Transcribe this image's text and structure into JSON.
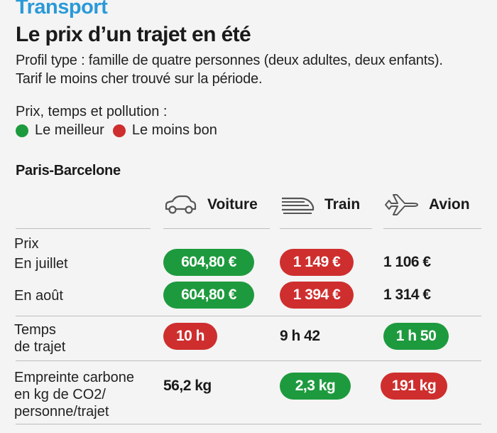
{
  "header": {
    "kicker": "Transport",
    "title": "Le prix d’un trajet en été",
    "subtitle_line1": "Profil type : famille de quatre personnes (deux adultes, deux enfants).",
    "subtitle_line2": "Tarif le moins cher trouvé sur la période."
  },
  "legend": {
    "title": "Prix, temps et pollution :",
    "best": "Le meilleur",
    "worst": "Le moins bon"
  },
  "colors": {
    "best": "#1e9a3e",
    "worst": "#cf2e2e"
  },
  "chart_data": {
    "type": "table",
    "route": "Paris-Barcelone",
    "columns": [
      {
        "name": "Voiture",
        "icon": "car-icon"
      },
      {
        "name": "Train",
        "icon": "train-icon"
      },
      {
        "name": "Avion",
        "icon": "plane-icon"
      }
    ],
    "sections": [
      {
        "label": "Prix"
      },
      {
        "label": "Temps de trajet"
      },
      {
        "label": "Empreinte carbone en kg de CO2/ personne/trajet"
      }
    ],
    "rows": [
      {
        "label": "En juillet",
        "values": [
          "604,80 €",
          "1 149 €",
          "1 106 €"
        ],
        "ratings": [
          "best",
          "worst",
          "none"
        ]
      },
      {
        "label": "En août",
        "values": [
          "604,80 €",
          "1 394 €",
          "1 314 €"
        ],
        "ratings": [
          "best",
          "worst",
          "none"
        ]
      },
      {
        "label_line1": "Temps",
        "label_line2": "de trajet",
        "values": [
          "10 h",
          "9 h 42",
          "1 h 50"
        ],
        "ratings": [
          "worst",
          "none",
          "best"
        ]
      },
      {
        "label_line1": "Empreinte carbone",
        "label_line2": "en kg de CO2/",
        "label_line3": "personne/trajet",
        "values": [
          "56,2 kg",
          "2,3 kg",
          "191 kg"
        ],
        "ratings": [
          "none",
          "best",
          "worst"
        ]
      }
    ]
  }
}
